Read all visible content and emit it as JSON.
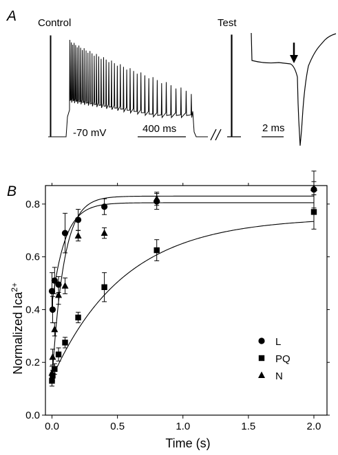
{
  "panel_a": {
    "panel_label": "A",
    "control_label": "Control",
    "test_label": "Test",
    "holding_label": "-70 mV",
    "scale_bar_400": "400 ms",
    "scale_bar_2": "2 ms"
  },
  "panel_b": {
    "panel_label": "B"
  },
  "chart_data": {
    "type": "scatter",
    "title": "",
    "xlabel": "Time (s)",
    "ylabel": "Normalized Ica",
    "ylabel_sup": "2+",
    "xlim": [
      -0.05,
      2.1
    ],
    "ylim": [
      0.0,
      0.87
    ],
    "x_ticks": [
      0.0,
      0.5,
      1.0,
      1.5,
      2.0
    ],
    "x_tick_labels": [
      "0.0",
      "0.5",
      "1.0",
      "1.5",
      "2.0"
    ],
    "y_ticks": [
      0.0,
      0.2,
      0.4,
      0.6,
      0.8
    ],
    "y_tick_labels": [
      "0.0",
      "0.2",
      "0.4",
      "0.6",
      "0.8"
    ],
    "grid": false,
    "legend_position": "lower-right",
    "series": [
      {
        "name": "L",
        "marker": "circle",
        "points": [
          {
            "x": 0.0,
            "y": 0.47,
            "err": 0.07
          },
          {
            "x": 0.005,
            "y": 0.4,
            "err": 0.05
          },
          {
            "x": 0.02,
            "y": 0.51,
            "err": 0.05
          },
          {
            "x": 0.05,
            "y": 0.495,
            "err": 0.03
          },
          {
            "x": 0.1,
            "y": 0.69,
            "err": 0.075
          },
          {
            "x": 0.2,
            "y": 0.74,
            "err": 0.04
          },
          {
            "x": 0.4,
            "y": 0.79,
            "err": 0.03
          },
          {
            "x": 0.8,
            "y": 0.81,
            "err": 0.03
          },
          {
            "x": 2.0,
            "y": 0.855,
            "err": 0.07
          }
        ],
        "fit": {
          "a": 0.42,
          "b": 0.385,
          "tau": 0.1
        }
      },
      {
        "name": "PQ",
        "marker": "square",
        "points": [
          {
            "x": 0.0,
            "y": 0.13,
            "err": 0.02
          },
          {
            "x": 0.005,
            "y": 0.15,
            "err": 0.02
          },
          {
            "x": 0.02,
            "y": 0.175,
            "err": 0.02
          },
          {
            "x": 0.05,
            "y": 0.23,
            "err": 0.025
          },
          {
            "x": 0.1,
            "y": 0.275,
            "err": 0.02
          },
          {
            "x": 0.2,
            "y": 0.37,
            "err": 0.02
          },
          {
            "x": 0.4,
            "y": 0.485,
            "err": 0.055
          },
          {
            "x": 0.8,
            "y": 0.625,
            "err": 0.04
          },
          {
            "x": 2.0,
            "y": 0.77,
            "err": 0.065
          }
        ],
        "fit": {
          "a": 0.14,
          "b": 0.61,
          "tau": 0.55
        }
      },
      {
        "name": "N",
        "marker": "triangle",
        "points": [
          {
            "x": 0.0,
            "y": 0.16,
            "err": 0.025
          },
          {
            "x": 0.005,
            "y": 0.22,
            "err": 0.03
          },
          {
            "x": 0.02,
            "y": 0.325,
            "err": 0.025
          },
          {
            "x": 0.05,
            "y": 0.455,
            "err": 0.035
          },
          {
            "x": 0.1,
            "y": 0.49,
            "err": 0.03
          },
          {
            "x": 0.2,
            "y": 0.68,
            "err": 0.02
          },
          {
            "x": 0.4,
            "y": 0.69,
            "err": 0.02
          },
          {
            "x": 0.8,
            "y": 0.82,
            "err": 0.025
          },
          {
            "x": 2.0,
            "y": 0.86,
            "err": 0.025
          }
        ],
        "fit": {
          "a": 0.13,
          "b": 0.7,
          "tau": 0.09
        }
      }
    ]
  }
}
